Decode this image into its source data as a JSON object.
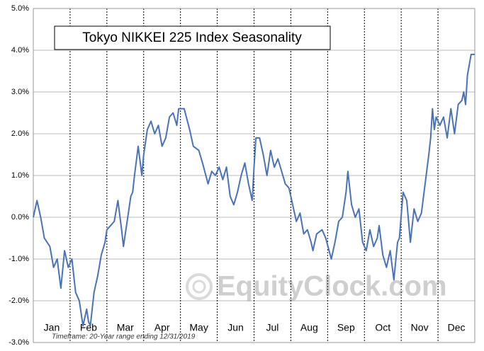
{
  "chart_data": {
    "type": "line",
    "title": "Tokyo NIKKEI 225 Index Seasonality",
    "footnote": "Timeframe: 20-Year range ending 12/31/2019",
    "watermark": "EquityClock.com",
    "xlim": [
      0,
      12
    ],
    "xticks": [
      {
        "value": 0.5,
        "label": "Jan"
      },
      {
        "value": 1.5,
        "label": "Feb"
      },
      {
        "value": 2.5,
        "label": "Mar"
      },
      {
        "value": 3.5,
        "label": "Apr"
      },
      {
        "value": 4.5,
        "label": "May"
      },
      {
        "value": 5.5,
        "label": "Jun"
      },
      {
        "value": 6.5,
        "label": "Jul"
      },
      {
        "value": 7.5,
        "label": "Aug"
      },
      {
        "value": 8.5,
        "label": "Sep"
      },
      {
        "value": 9.5,
        "label": "Oct"
      },
      {
        "value": 10.5,
        "label": "Nov"
      },
      {
        "value": 11.5,
        "label": "Dec"
      }
    ],
    "ylim": [
      -3,
      5
    ],
    "yticks": [
      {
        "value": -3,
        "label": "-3.0%"
      },
      {
        "value": -2,
        "label": "-2.0%"
      },
      {
        "value": -1,
        "label": "-1.0%"
      },
      {
        "value": 0,
        "label": "0.0%"
      },
      {
        "value": 1,
        "label": "1.0%"
      },
      {
        "value": 2,
        "label": "2.0%"
      },
      {
        "value": 3,
        "label": "3.0%"
      },
      {
        "value": 4,
        "label": "4.0%"
      },
      {
        "value": 5,
        "label": "5.0%"
      }
    ],
    "grid": true,
    "x": [
      0,
      0.1,
      0.2,
      0.3,
      0.45,
      0.55,
      0.65,
      0.75,
      0.85,
      0.95,
      1.05,
      1.15,
      1.25,
      1.35,
      1.45,
      1.5,
      1.55,
      1.65,
      1.75,
      1.85,
      1.95,
      2.0,
      2.1,
      2.2,
      2.3,
      2.4,
      2.45,
      2.55,
      2.65,
      2.7,
      2.75,
      2.85,
      2.95,
      3.0,
      3.1,
      3.2,
      3.3,
      3.4,
      3.5,
      3.6,
      3.7,
      3.8,
      3.9,
      3.95,
      4.1,
      4.25,
      4.35,
      4.5,
      4.6,
      4.75,
      4.85,
      4.95,
      5.05,
      5.15,
      5.25,
      5.35,
      5.45,
      5.55,
      5.65,
      5.75,
      5.85,
      5.95,
      6.0,
      6.05,
      6.15,
      6.25,
      6.35,
      6.45,
      6.55,
      6.65,
      6.75,
      6.85,
      6.95,
      7.05,
      7.15,
      7.25,
      7.35,
      7.45,
      7.55,
      7.6,
      7.7,
      7.85,
      7.95,
      8.1,
      8.2,
      8.3,
      8.4,
      8.5,
      8.55,
      8.65,
      8.75,
      8.85,
      8.95,
      9.05,
      9.15,
      9.25,
      9.35,
      9.4,
      9.5,
      9.6,
      9.7,
      9.8,
      9.9,
      9.95,
      10.05,
      10.15,
      10.25,
      10.35,
      10.45,
      10.55,
      10.65,
      10.75,
      10.8,
      10.85,
      10.9,
      10.95,
      11.05,
      11.15,
      11.25,
      11.35,
      11.45,
      11.55,
      11.65,
      11.7,
      11.75,
      11.8,
      11.9,
      12.0
    ],
    "series": [
      {
        "color": "#4a72b8",
        "values": [
          0.0,
          0.4,
          0.0,
          -0.5,
          -0.7,
          -1.2,
          -1.0,
          -1.7,
          -0.8,
          -1.2,
          -1.0,
          -1.8,
          -2.0,
          -2.6,
          -2.2,
          -2.5,
          -2.6,
          -1.8,
          -1.4,
          -0.9,
          -0.6,
          -0.3,
          -0.2,
          -0.1,
          0.4,
          -0.3,
          -0.7,
          -0.1,
          0.5,
          0.6,
          1.0,
          1.7,
          1.0,
          1.5,
          2.1,
          2.3,
          2.0,
          2.2,
          1.7,
          1.9,
          2.4,
          2.5,
          2.2,
          2.6,
          2.6,
          2.1,
          1.7,
          1.6,
          1.3,
          0.8,
          1.1,
          1.0,
          1.2,
          0.9,
          1.2,
          0.5,
          0.3,
          0.6,
          1.0,
          1.3,
          0.8,
          0.4,
          1.2,
          1.9,
          1.9,
          1.5,
          1.0,
          1.6,
          1.2,
          1.4,
          1.1,
          0.8,
          0.7,
          0.3,
          -0.1,
          0.1,
          -0.4,
          -0.3,
          -0.6,
          -0.8,
          -0.4,
          -0.3,
          -0.5,
          -1.0,
          -0.6,
          -0.1,
          0.0,
          0.6,
          1.1,
          0.3,
          0.0,
          0.2,
          -0.6,
          -0.8,
          -0.3,
          -0.7,
          -0.5,
          -0.2,
          -0.9,
          -1.2,
          -0.8,
          -1.5,
          -0.6,
          -0.5,
          0.6,
          0.4,
          -0.6,
          0.2,
          -0.1,
          0.1,
          0.8,
          1.5,
          1.9,
          2.6,
          2.1,
          2.4,
          2.2,
          2.4,
          1.9,
          2.6,
          2.0,
          2.7,
          2.8,
          3.0,
          2.7,
          3.4,
          3.9,
          3.9
        ]
      }
    ]
  }
}
